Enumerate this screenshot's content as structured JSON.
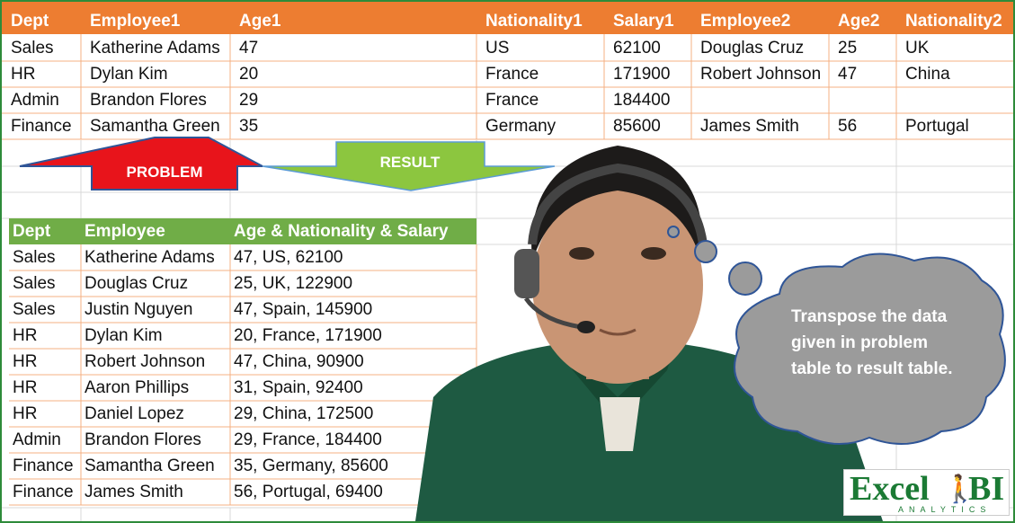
{
  "problem_table": {
    "headers": [
      "Dept",
      "Employee1",
      "Age1",
      "Nationality1",
      "Salary1",
      "Employee2",
      "Age2",
      "Nationality2"
    ],
    "rows": [
      [
        "Sales",
        "Katherine Adams",
        "47",
        "US",
        "62100",
        "Douglas Cruz",
        "25",
        "UK"
      ],
      [
        "HR",
        "Dylan Kim",
        "20",
        "France",
        "171900",
        "Robert Johnson",
        "47",
        "China"
      ],
      [
        "Admin",
        "Brandon Flores",
        "29",
        "France",
        "184400",
        "",
        "",
        ""
      ],
      [
        "Finance",
        "Samantha Green",
        "35",
        "Germany",
        "85600",
        "James Smith",
        "56",
        "Portugal"
      ]
    ]
  },
  "arrows": {
    "problem_label": "PROBLEM",
    "result_label": "RESULT"
  },
  "result_table": {
    "headers": [
      "Dept",
      "Employee",
      "Age & Nationality & Salary"
    ],
    "rows": [
      [
        "Sales",
        "Katherine Adams",
        "47, US, 62100"
      ],
      [
        "Sales",
        "Douglas Cruz",
        "25, UK, 122900"
      ],
      [
        "Sales",
        "Justin Nguyen",
        "47, Spain, 145900"
      ],
      [
        "HR",
        "Dylan Kim",
        "20, France, 171900"
      ],
      [
        "HR",
        "Robert Johnson",
        "47, China, 90900"
      ],
      [
        "HR",
        "Aaron Phillips",
        "31, Spain, 92400"
      ],
      [
        "HR",
        "Daniel Lopez",
        "29, China, 172500"
      ],
      [
        "Admin",
        "Brandon Flores",
        "29, France, 184400"
      ],
      [
        "Finance",
        "Samantha Green",
        "35, Germany, 85600"
      ],
      [
        "Finance",
        "James Smith",
        "56, Portugal, 69400"
      ]
    ]
  },
  "thought_bubble": {
    "text": "Transpose the data given in problem table to result table."
  },
  "logo": {
    "word1": "Excel",
    "word2": "BI",
    "tagline": "ANALYTICS"
  },
  "colors": {
    "orange_header": "#ed7d31",
    "green_header": "#70ad47",
    "border": "#2e8b3a",
    "problem_arrow": "#e8141b",
    "result_arrow": "#8cc63f",
    "bubble": "#9b9b9b"
  }
}
